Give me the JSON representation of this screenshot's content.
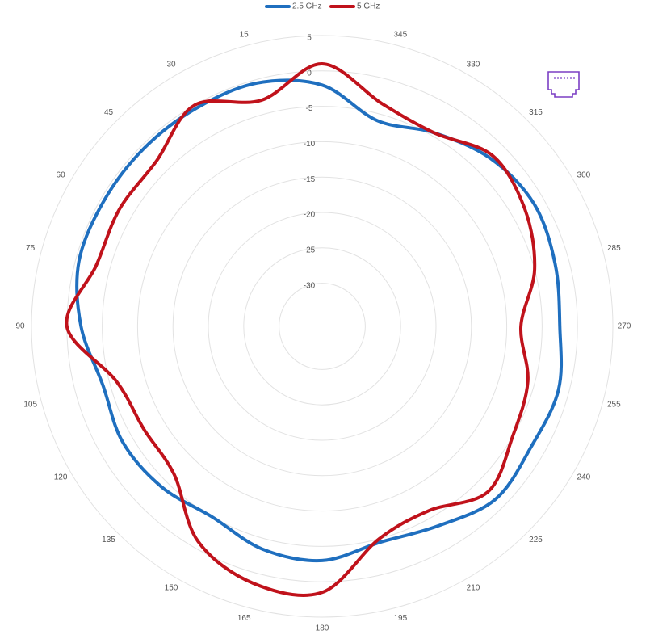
{
  "chart_data": {
    "type": "radar",
    "title": "",
    "legend_position": "top",
    "grid": true,
    "r_range": [
      -30,
      5
    ],
    "r_ticks": [
      5,
      0,
      -5,
      -10,
      -15,
      -20,
      -25,
      -30
    ],
    "r_tick_labels": [
      "5",
      "0",
      "-5",
      "-10",
      "-15",
      "-20",
      "-25",
      "-30"
    ],
    "angle_labels": [
      "0",
      "15",
      "30",
      "45",
      "60",
      "75",
      "90",
      "105",
      "120",
      "135",
      "150",
      "165",
      "180",
      "195",
      "210",
      "225",
      "240",
      "255",
      "270",
      "285",
      "300",
      "315",
      "330",
      "345"
    ],
    "angles_deg": [
      0,
      15,
      30,
      45,
      60,
      75,
      90,
      105,
      120,
      135,
      150,
      165,
      180,
      195,
      210,
      225,
      240,
      255,
      270,
      285,
      300,
      315,
      330,
      345
    ],
    "series": [
      {
        "name": "2.5 GHz",
        "color": "#1f6fbf",
        "values": [
          -2,
          -0.5,
          -0.5,
          -0.5,
          -0.5,
          -0.5,
          -2,
          -4,
          -3.5,
          -4,
          -5,
          -3.5,
          -3,
          -4.5,
          -3.5,
          -1.5,
          -2,
          -1.5,
          -2.5,
          -2,
          -1.5,
          -2.5,
          -4.5,
          -6
        ]
      },
      {
        "name": "5 GHz",
        "color": "#c0121b",
        "values": [
          1,
          -3,
          0,
          -3,
          -3,
          -3,
          0,
          -6,
          -7,
          -6.5,
          -1,
          1.5,
          1.5,
          -5,
          -6,
          -3,
          -5,
          -6,
          -8,
          -5,
          -3,
          -2,
          -4.5,
          -3.5
        ]
      }
    ],
    "annotations": [
      {
        "type": "icon",
        "name": "ethernet-port-icon",
        "color": "#7b3fc4"
      }
    ]
  }
}
